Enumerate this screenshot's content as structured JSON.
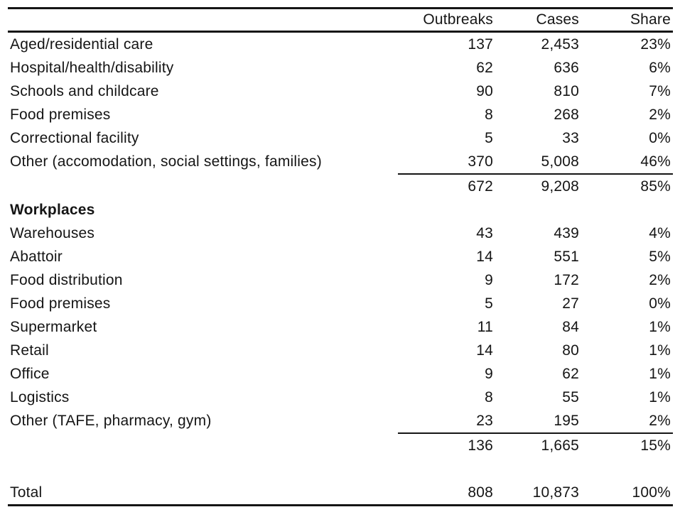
{
  "header": {
    "outbreaks": "Outbreaks",
    "cases": "Cases",
    "share": "Share"
  },
  "section1": {
    "rows": [
      {
        "label": "Aged/residential care",
        "outbreaks": "137",
        "cases": "2,453",
        "share": "23%"
      },
      {
        "label": "Hospital/health/disability",
        "outbreaks": "62",
        "cases": "636",
        "share": "6%"
      },
      {
        "label": "Schools and childcare",
        "outbreaks": "90",
        "cases": "810",
        "share": "7%"
      },
      {
        "label": "Food premises",
        "outbreaks": "8",
        "cases": "268",
        "share": "2%"
      },
      {
        "label": "Correctional facility",
        "outbreaks": "5",
        "cases": "33",
        "share": "0%"
      },
      {
        "label": "Other (accomodation, social settings, families)",
        "outbreaks": "370",
        "cases": "5,008",
        "share": "46%"
      }
    ],
    "subtotal": {
      "outbreaks": "672",
      "cases": "9,208",
      "share": "85%"
    }
  },
  "section2": {
    "title": "Workplaces",
    "rows": [
      {
        "label": "Warehouses",
        "outbreaks": "43",
        "cases": "439",
        "share": "4%"
      },
      {
        "label": "Abattoir",
        "outbreaks": "14",
        "cases": "551",
        "share": "5%"
      },
      {
        "label": "Food distribution",
        "outbreaks": "9",
        "cases": "172",
        "share": "2%"
      },
      {
        "label": "Food premises",
        "outbreaks": "5",
        "cases": "27",
        "share": "0%"
      },
      {
        "label": "Supermarket",
        "outbreaks": "11",
        "cases": "84",
        "share": "1%"
      },
      {
        "label": "Retail",
        "outbreaks": "14",
        "cases": "80",
        "share": "1%"
      },
      {
        "label": "Office",
        "outbreaks": "9",
        "cases": "62",
        "share": "1%"
      },
      {
        "label": "Logistics",
        "outbreaks": "8",
        "cases": "55",
        "share": "1%"
      },
      {
        "label": "Other (TAFE, pharmacy, gym)",
        "outbreaks": "23",
        "cases": "195",
        "share": "2%"
      }
    ],
    "subtotal": {
      "outbreaks": "136",
      "cases": "1,665",
      "share": "15%"
    }
  },
  "total": {
    "label": "Total",
    "outbreaks": "808",
    "cases": "10,873",
    "share": "100%"
  },
  "colors": {
    "text": "#151515",
    "background": "#ffffff",
    "rule": "#151515"
  }
}
